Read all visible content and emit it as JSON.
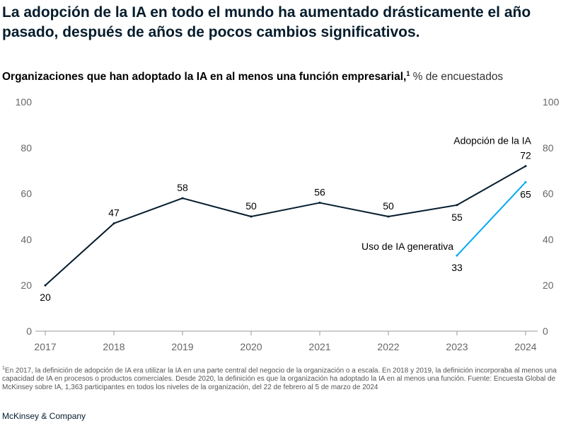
{
  "title": "La adopción de la IA en todo el mundo ha aumentado drásticamente el año pasado, después de años de pocos cambios significativos.",
  "subtitle": {
    "main": "Organizaciones que han adoptado la IA en al menos una función empresarial,",
    "footnote_marker": "1",
    "unit": " % de encuestados"
  },
  "footnote": {
    "marker": "1",
    "text": "En 2017, la definición de adopción de IA era utilizar la IA en una parte central del negocio de la organización o a escala. En 2018 y 2019, la definición incorporaba al menos una capacidad de IA en procesos o productos comerciales. Desde 2020, la definición es que la organización ha adoptado la IA en al menos una función. Fuente: Encuesta Global de McKinsey sobre IA, 1,363 participantes en todos los niveles de la organización, del 22 de febrero al 5 de marzo de 2024"
  },
  "brand": "McKinsey & Company",
  "chart_data": {
    "type": "line",
    "x": [
      "2017",
      "2018",
      "2019",
      "2020",
      "2021",
      "2022",
      "2023",
      "2024"
    ],
    "ylim": [
      0,
      100
    ],
    "yticks": [
      "0",
      "20",
      "40",
      "60",
      "80",
      "100"
    ],
    "grid": false,
    "series": [
      {
        "name": "Adopción de la IA",
        "color": "#051c2c",
        "x": [
          "2017",
          "2018",
          "2019",
          "2020",
          "2021",
          "2022",
          "2023",
          "2024"
        ],
        "values": [
          20,
          47,
          58,
          50,
          56,
          50,
          55,
          72
        ],
        "labels": [
          "20",
          "47",
          "58",
          "50",
          "56",
          "50",
          "55",
          "72"
        ],
        "label_positions": [
          "below",
          "above",
          "above",
          "above",
          "above",
          "above",
          "below",
          "above"
        ]
      },
      {
        "name": "Uso de IA generativa",
        "color": "#00a9f4",
        "x": [
          "2023",
          "2024"
        ],
        "values": [
          33,
          65
        ],
        "labels": [
          "33",
          "65"
        ],
        "label_positions": [
          "below",
          "below"
        ]
      }
    ]
  }
}
